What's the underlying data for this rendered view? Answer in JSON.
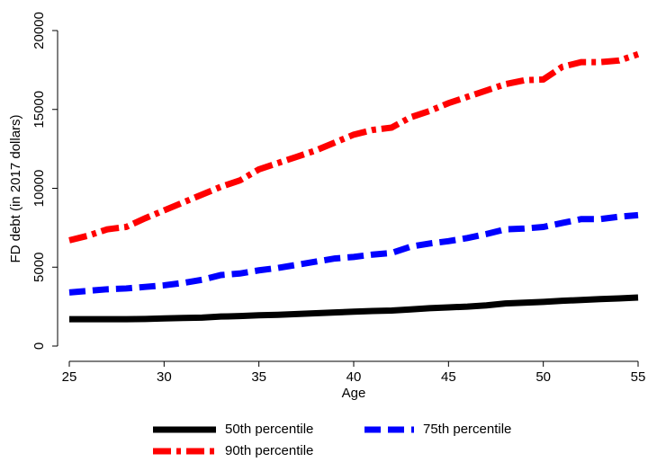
{
  "chart_data": {
    "type": "line",
    "x_label": "Age",
    "y_label": "FD debt (in 2017 dollars)",
    "x": [
      25,
      26,
      27,
      28,
      29,
      30,
      31,
      32,
      33,
      34,
      35,
      36,
      37,
      38,
      39,
      40,
      41,
      42,
      43,
      44,
      45,
      46,
      47,
      48,
      49,
      50,
      51,
      52,
      53,
      54,
      55
    ],
    "series": [
      {
        "name": "50th percentile",
        "color": "#000000",
        "values": [
          1700,
          1700,
          1700,
          1700,
          1720,
          1750,
          1780,
          1800,
          1870,
          1900,
          1950,
          1980,
          2030,
          2080,
          2130,
          2180,
          2220,
          2250,
          2320,
          2400,
          2450,
          2500,
          2580,
          2700,
          2750,
          2800,
          2870,
          2920,
          2980,
          3020,
          3080
        ]
      },
      {
        "name": "75th percentile",
        "color": "#0000ff",
        "values": [
          3400,
          3500,
          3600,
          3650,
          3750,
          3850,
          4000,
          4200,
          4500,
          4600,
          4800,
          4950,
          5150,
          5350,
          5550,
          5650,
          5800,
          5900,
          6300,
          6500,
          6650,
          6850,
          7100,
          7400,
          7450,
          7550,
          7800,
          8050,
          8050,
          8200,
          8300
        ]
      },
      {
        "name": "90th percentile",
        "color": "#ff0000",
        "values": [
          6700,
          7000,
          7400,
          7550,
          8100,
          8600,
          9100,
          9600,
          10100,
          10500,
          11200,
          11600,
          12000,
          12400,
          12900,
          13400,
          13700,
          13850,
          14500,
          14900,
          15400,
          15800,
          16200,
          16600,
          16850,
          16900,
          17700,
          18000,
          18000,
          18100,
          18500
        ]
      }
    ],
    "xlim": [
      25,
      55
    ],
    "xticks": [
      25,
      30,
      35,
      40,
      45,
      50,
      55
    ],
    "ylim": [
      0,
      20000
    ],
    "yticks": [
      0,
      5000,
      10000,
      15000,
      20000
    ],
    "grid": false,
    "legend": "bottom"
  }
}
